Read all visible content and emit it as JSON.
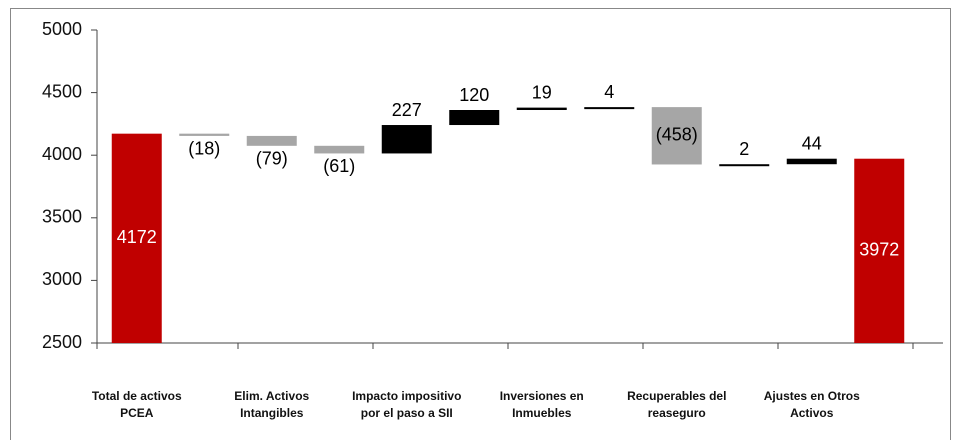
{
  "chart_data": {
    "type": "waterfall",
    "categories": [
      "Total de activos PCEA",
      null,
      "Elim. Activos Intangibles",
      null,
      "Impacto impositivo por el paso a SII",
      null,
      "Inversiones en Inmuebles",
      null,
      "Recuperables del reaseguro",
      null,
      "Ajustes en Otros Activos",
      null
    ],
    "values": [
      4172,
      -18,
      -79,
      -61,
      227,
      120,
      19,
      4,
      -458,
      2,
      44,
      3972
    ],
    "value_labels": [
      "4172",
      "(18)",
      "(79)",
      "(61)",
      "227",
      "120",
      "19",
      "4",
      "(458)",
      "2",
      "44",
      "3972"
    ],
    "colors": [
      "#c00000",
      "#a6a6a6",
      "#a6a6a6",
      "#a6a6a6",
      "#000000",
      "#000000",
      "#000000",
      "#000000",
      "#a6a6a6",
      "#000000",
      "#000000",
      "#c00000"
    ],
    "ylim": [
      2500,
      5000
    ],
    "yticks": [
      2500,
      3000,
      3500,
      4000,
      4500,
      5000
    ]
  }
}
